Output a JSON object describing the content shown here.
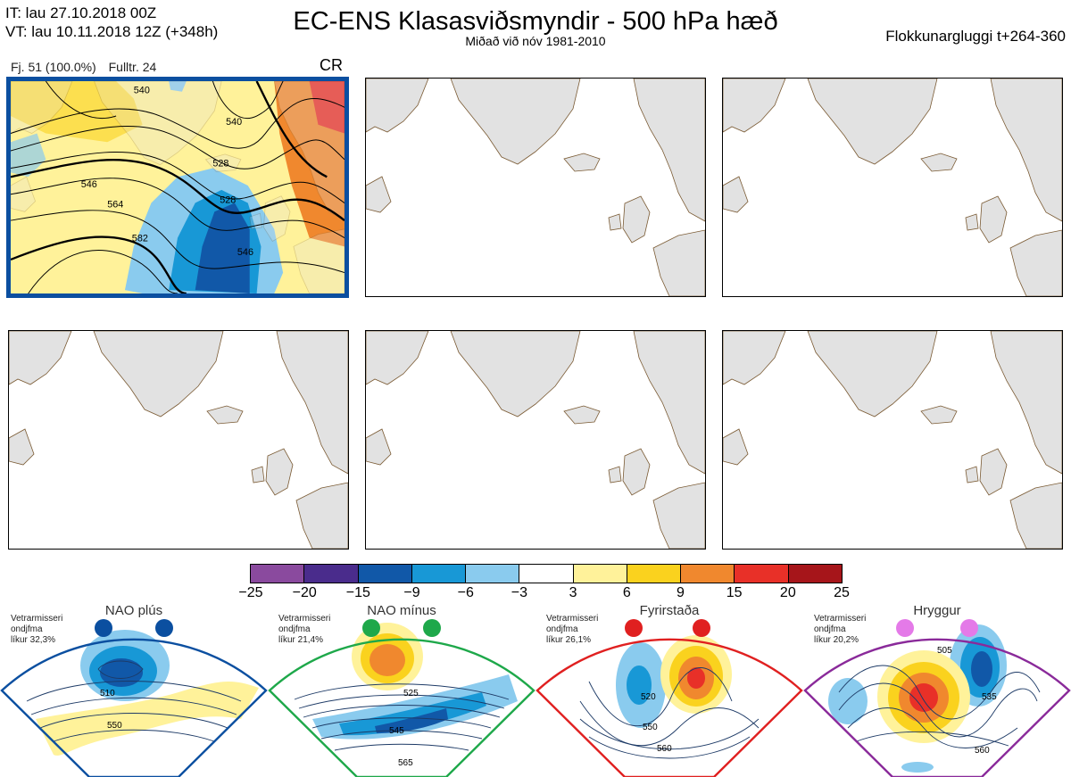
{
  "header": {
    "it_line": "IT: lau 27.10.2018 00Z",
    "vt_line": "VT: lau 10.11.2018 12Z  (+348h)",
    "title": "EC-ENS Klasasviðsmyndir - 500 hPa hæð",
    "subtitle": "Miðað við nóv 1981-2010",
    "window": "Flokkunargluggi t+264-360"
  },
  "active_panel": {
    "members": "Fj. 51 (100.0%)",
    "fulltr": "Fulltr. 24",
    "code": "CR",
    "contour_labels": [
      "540",
      "540",
      "528",
      "528",
      "546",
      "564",
      "582",
      "546"
    ]
  },
  "colorbar": {
    "colors": [
      "#8a4a9e",
      "#4a2c8c",
      "#1158a8",
      "#1898d6",
      "#8acbee",
      "#ffffff",
      "#fff29a",
      "#fad21e",
      "#f0882e",
      "#e83028",
      "#a6151a"
    ],
    "ticks": [
      "−25",
      "−20",
      "−15",
      "−9",
      "−6",
      "−3",
      "3",
      "6",
      "9",
      "15",
      "20",
      "25"
    ]
  },
  "regimes": [
    {
      "name": "NAO plús",
      "line1": "Vetrarmisseri",
      "line2": "ondjfma",
      "line3": "líkur 32,3%",
      "color": "#0b4fa0",
      "dot": "#0b4fa0",
      "labels": [
        "510",
        "550"
      ]
    },
    {
      "name": "NAO mínus",
      "line1": "Vetrarmisseri",
      "line2": "ondjfma",
      "line3": "líkur 21,4%",
      "color": "#1ea84a",
      "dot": "#1ea84a",
      "labels": [
        "525",
        "545",
        "565"
      ]
    },
    {
      "name": "Fyrirstaða",
      "line1": "Vetrarmisseri",
      "line2": "ondjfma",
      "line3": "líkur 26,1%",
      "color": "#e02020",
      "dot": "#e02020",
      "labels": [
        "520",
        "550",
        "560"
      ]
    },
    {
      "name": "Hryggur",
      "line1": "Vetrarmisseri",
      "line2": "ondjfma",
      "line3": "líkur 20,2%",
      "color": "#8a2a9a",
      "dot": "#e47ae8",
      "labels": [
        "505",
        "535",
        "560"
      ]
    }
  ]
}
